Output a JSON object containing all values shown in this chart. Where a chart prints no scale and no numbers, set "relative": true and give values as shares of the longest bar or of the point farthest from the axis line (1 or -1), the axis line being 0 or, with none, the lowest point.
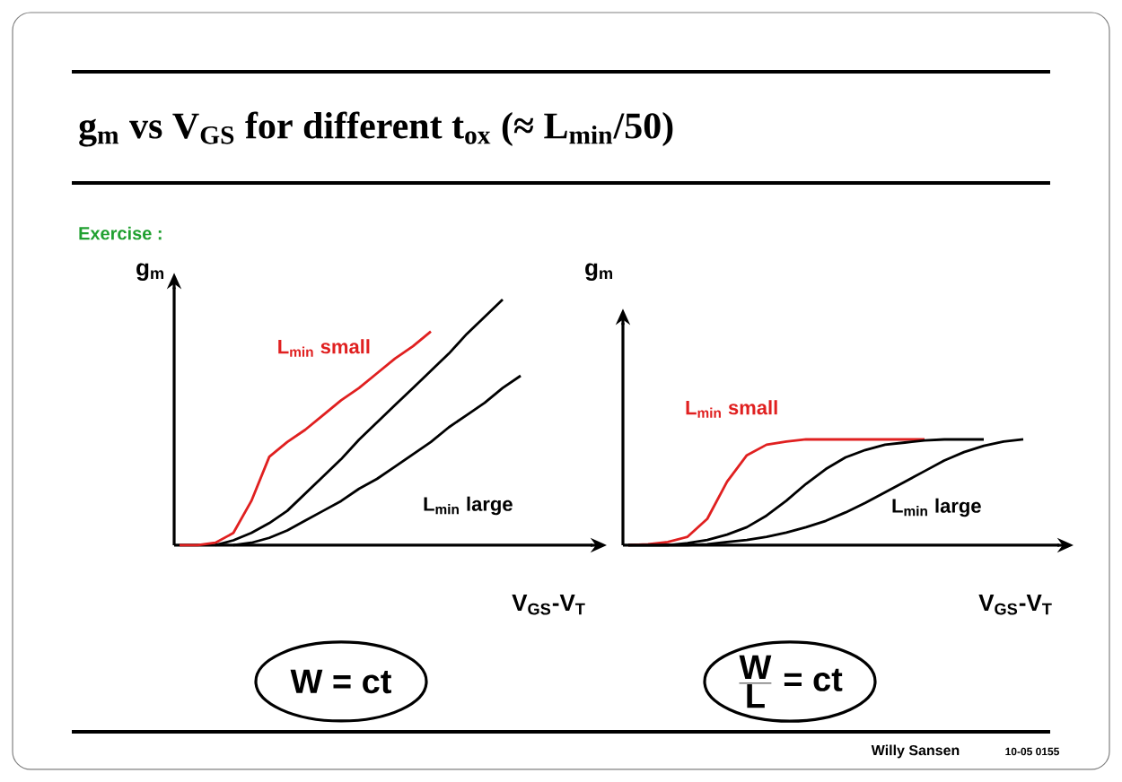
{
  "chart_data": [
    {
      "type": "line",
      "title": "g$_{m}$ vs V$_{GS}$ for different t$_{ox}$ (≈ L$_{min}$/50)",
      "subtitle": "Exercise :",
      "xlabel": "V$_{GS}$-V$_{T}$",
      "ylabel": "g$_{m}$",
      "relative": true,
      "categories": [
        null,
        null,
        null,
        null,
        null,
        null,
        null,
        null,
        null,
        null,
        null,
        null,
        null,
        null,
        null,
        null,
        null,
        null,
        null,
        null,
        null
      ],
      "series": [
        {
          "name": "L$_{min}$ small",
          "color": "#e02020",
          "values": [
            0,
            0,
            0.01,
            0.05,
            0.18,
            0.36,
            0.42,
            0.47,
            0.53,
            0.59,
            0.64,
            0.7,
            0.76,
            0.81,
            0.87,
            null,
            null,
            null,
            null,
            null,
            null
          ]
        },
        {
          "color": "#000000",
          "values": [
            null,
            null,
            0,
            0.02,
            0.05,
            0.09,
            0.14,
            0.21,
            0.28,
            0.35,
            0.43,
            0.5,
            0.57,
            0.64,
            0.71,
            0.78,
            0.86,
            0.93,
            1.0,
            null,
            null
          ]
        },
        {
          "name": "L$_{min}$ large",
          "color": "#000000",
          "values": [
            null,
            null,
            null,
            0,
            0.01,
            0.03,
            0.06,
            0.1,
            0.14,
            0.18,
            0.23,
            0.27,
            0.32,
            0.37,
            0.42,
            0.48,
            0.53,
            0.58,
            0.64,
            0.69,
            null
          ]
        }
      ],
      "annotations": [
        "W = ct"
      ]
    },
    {
      "type": "line",
      "xlabel": "V$_{GS}$-V$_{T}$",
      "ylabel": "g$_{m}$",
      "relative": true,
      "categories": [
        null,
        null,
        null,
        null,
        null,
        null,
        null,
        null,
        null,
        null,
        null,
        null,
        null,
        null,
        null,
        null,
        null,
        null,
        null,
        null,
        null
      ],
      "series": [
        {
          "name": "L$_{min}$ small",
          "color": "#e02020",
          "values": [
            0,
            0.01,
            0.03,
            0.08,
            0.25,
            0.6,
            0.85,
            0.95,
            0.98,
            1.0,
            1.0,
            1.0,
            1.0,
            1.0,
            1.0,
            1.0,
            null,
            null,
            null,
            null,
            null
          ]
        },
        {
          "color": "#000000",
          "values": [
            0,
            0,
            0,
            0.02,
            0.05,
            0.1,
            0.17,
            0.28,
            0.42,
            0.58,
            0.72,
            0.83,
            0.9,
            0.95,
            0.97,
            0.99,
            1.0,
            1.0,
            1.0,
            null,
            null
          ]
        },
        {
          "name": "L$_{min}$ large",
          "color": "#000000",
          "values": [
            0,
            0,
            0,
            0,
            0.01,
            0.03,
            0.05,
            0.08,
            0.12,
            0.17,
            0.23,
            0.31,
            0.4,
            0.5,
            0.6,
            0.7,
            0.8,
            0.88,
            0.94,
            0.98,
            1.0
          ]
        }
      ],
      "annotations": [
        "\\frac{\\textbf{W}}{\\textbf{L}}\\textbf{ = ct}",
        "Willy Sansen",
        "10-05 0155"
      ]
    }
  ]
}
